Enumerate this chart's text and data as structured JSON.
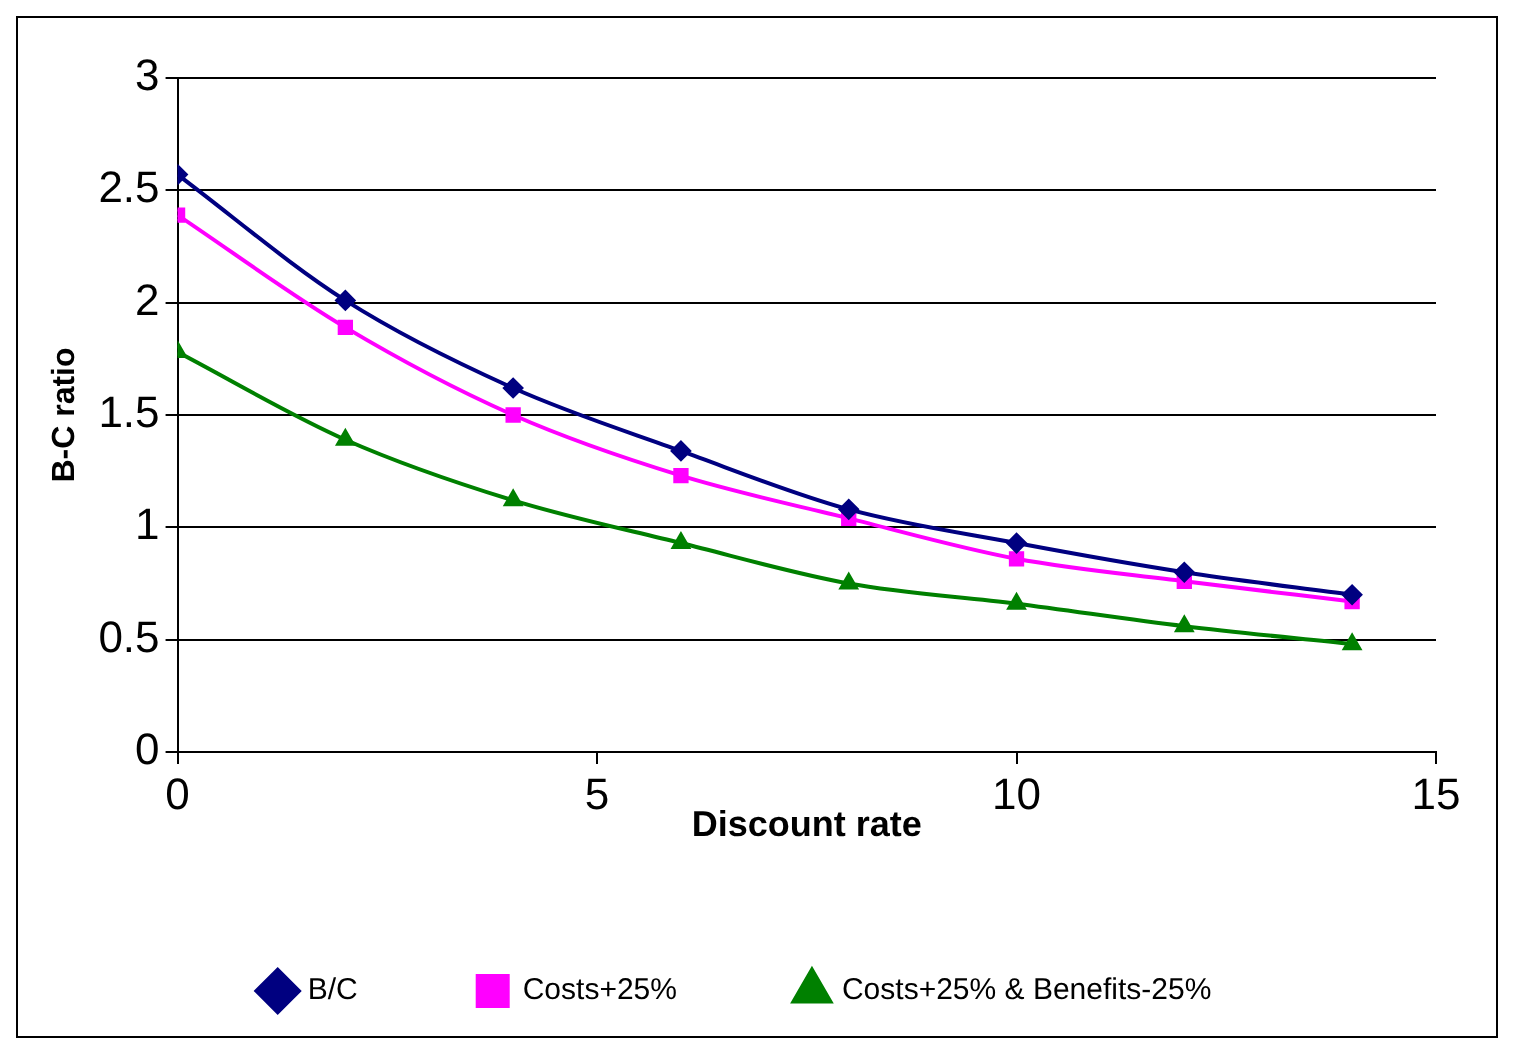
{
  "chart_data": {
    "type": "line",
    "xlabel": "Discount rate",
    "ylabel": "B-C ratio",
    "x": [
      0,
      2,
      4,
      6,
      8,
      10,
      12,
      14
    ],
    "xlim": [
      0,
      15
    ],
    "xticks": [
      0,
      5,
      10,
      15
    ],
    "ylim": [
      0,
      3
    ],
    "yticks": [
      0,
      0.5,
      1,
      1.5,
      2,
      2.5,
      3
    ],
    "grid": "y",
    "legend": "bottom",
    "line_style": "solid",
    "series": [
      {
        "name": "B/C",
        "color": "#000080",
        "marker": "diamond",
        "values": [
          2.57,
          2.01,
          1.62,
          1.34,
          1.08,
          0.93,
          0.8,
          0.7
        ]
      },
      {
        "name": "Costs+25%",
        "color": "#ff00ff",
        "marker": "square",
        "values": [
          2.39,
          1.89,
          1.5,
          1.23,
          1.04,
          0.86,
          0.76,
          0.67
        ]
      },
      {
        "name": "Costs+25% & Benefits-25%",
        "color": "#008000",
        "marker": "triangle",
        "values": [
          1.78,
          1.39,
          1.12,
          0.93,
          0.75,
          0.66,
          0.56,
          0.48
        ]
      }
    ]
  }
}
